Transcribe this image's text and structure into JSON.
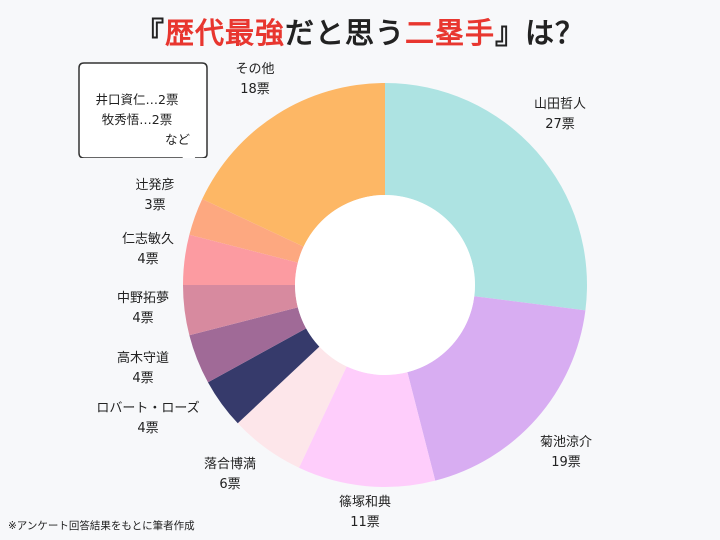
{
  "title": {
    "prefix": "『",
    "highlight1": "歴代最強",
    "middle": "だと思う",
    "highlight2": "二塁手",
    "suffix": "』は？"
  },
  "callout": {
    "lines": [
      "井口資仁…2票",
      "牧秀悟…2票",
      "など"
    ]
  },
  "footnote": "※アンケート回答結果をもとに筆者作成",
  "chart_data": {
    "type": "pie",
    "donut": true,
    "unit": "票",
    "slices": [
      {
        "label": "山田哲人",
        "value": 27,
        "value_text": "27票",
        "color": "#ade3e2"
      },
      {
        "label": "菊池涼介",
        "value": 19,
        "value_text": "19票",
        "color": "#d8adf2"
      },
      {
        "label": "篠塚和典",
        "value": 11,
        "value_text": "11票",
        "color": "#fecdfb"
      },
      {
        "label": "落合博満",
        "value": 6,
        "value_text": "6票",
        "color": "#fde6ea"
      },
      {
        "label": "ロバート・ローズ",
        "value": 4,
        "value_text": "4票",
        "color": "#363a6b"
      },
      {
        "label": "高木守道",
        "value": 4,
        "value_text": "4票",
        "color": "#a06a97"
      },
      {
        "label": "中野拓夢",
        "value": 4,
        "value_text": "4票",
        "color": "#d78a9f"
      },
      {
        "label": "仁志敏久",
        "value": 4,
        "value_text": "4票",
        "color": "#fc9ba1"
      },
      {
        "label": "辻発彦",
        "value": 3,
        "value_text": "3票",
        "color": "#fda880"
      },
      {
        "label": "その他",
        "value": 18,
        "value_text": "18票",
        "color": "#fdb765"
      }
    ]
  }
}
